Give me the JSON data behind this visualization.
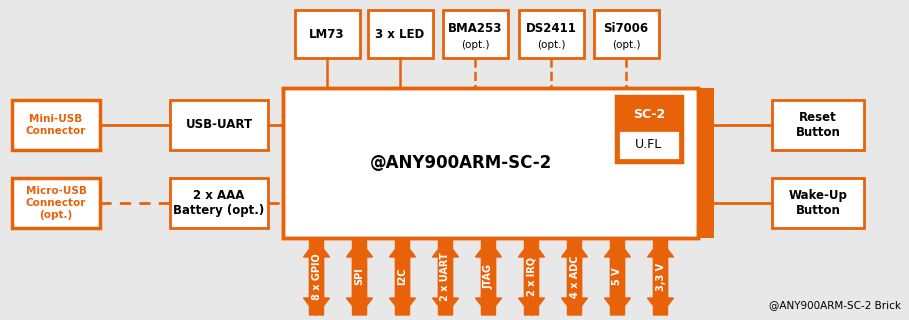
{
  "bg_color": "#e8e8e8",
  "orange": "#E8620A",
  "white": "#FFFFFF",
  "black": "#000000",
  "fig_width": 9.09,
  "fig_height": 3.2,
  "dpi": 100,
  "title_text": "@ANY900ARM-SC-2",
  "watermark": "@ANY900ARM-SC-2 Brick",
  "top_boxes": [
    {
      "label": "LM73",
      "sub": "",
      "dashed": false
    },
    {
      "label": "3 x LED",
      "sub": "",
      "dashed": false
    },
    {
      "label": "BMA253",
      "sub": "(opt.)",
      "dashed": true
    },
    {
      "label": "DS2411",
      "sub": "(opt.)",
      "dashed": true
    },
    {
      "label": "Si7006",
      "sub": "(opt.)",
      "dashed": true
    }
  ],
  "left_usb_boxes": [
    {
      "label": "Mini-USB\nConnector",
      "dashed_conn": false
    },
    {
      "label": "Micro-USB\nConnector\n(opt.)",
      "dashed_conn": true
    }
  ],
  "mid_left_boxes": [
    {
      "label": "USB-UART",
      "dashed_conn": false
    },
    {
      "label": "2 x AAA\nBattery (opt.)",
      "dashed_conn": true
    }
  ],
  "right_boxes": [
    {
      "label": "Reset\nButton"
    },
    {
      "label": "Wake-Up\nButton"
    }
  ],
  "sc2_label": "SC-2",
  "ufl_label": "U.FL",
  "arrows": [
    {
      "label": "8 x GPIO",
      "dir": "both"
    },
    {
      "label": "SPI",
      "dir": "both"
    },
    {
      "label": "I2C",
      "dir": "both"
    },
    {
      "label": "2 x UART",
      "dir": "both"
    },
    {
      "label": "JTAG",
      "dir": "both"
    },
    {
      "label": "2 x IRQ",
      "dir": "both"
    },
    {
      "label": "4 x ADC",
      "dir": "both"
    },
    {
      "label": "5 V",
      "dir": "both"
    },
    {
      "label": "3,3 V",
      "dir": "both"
    }
  ]
}
